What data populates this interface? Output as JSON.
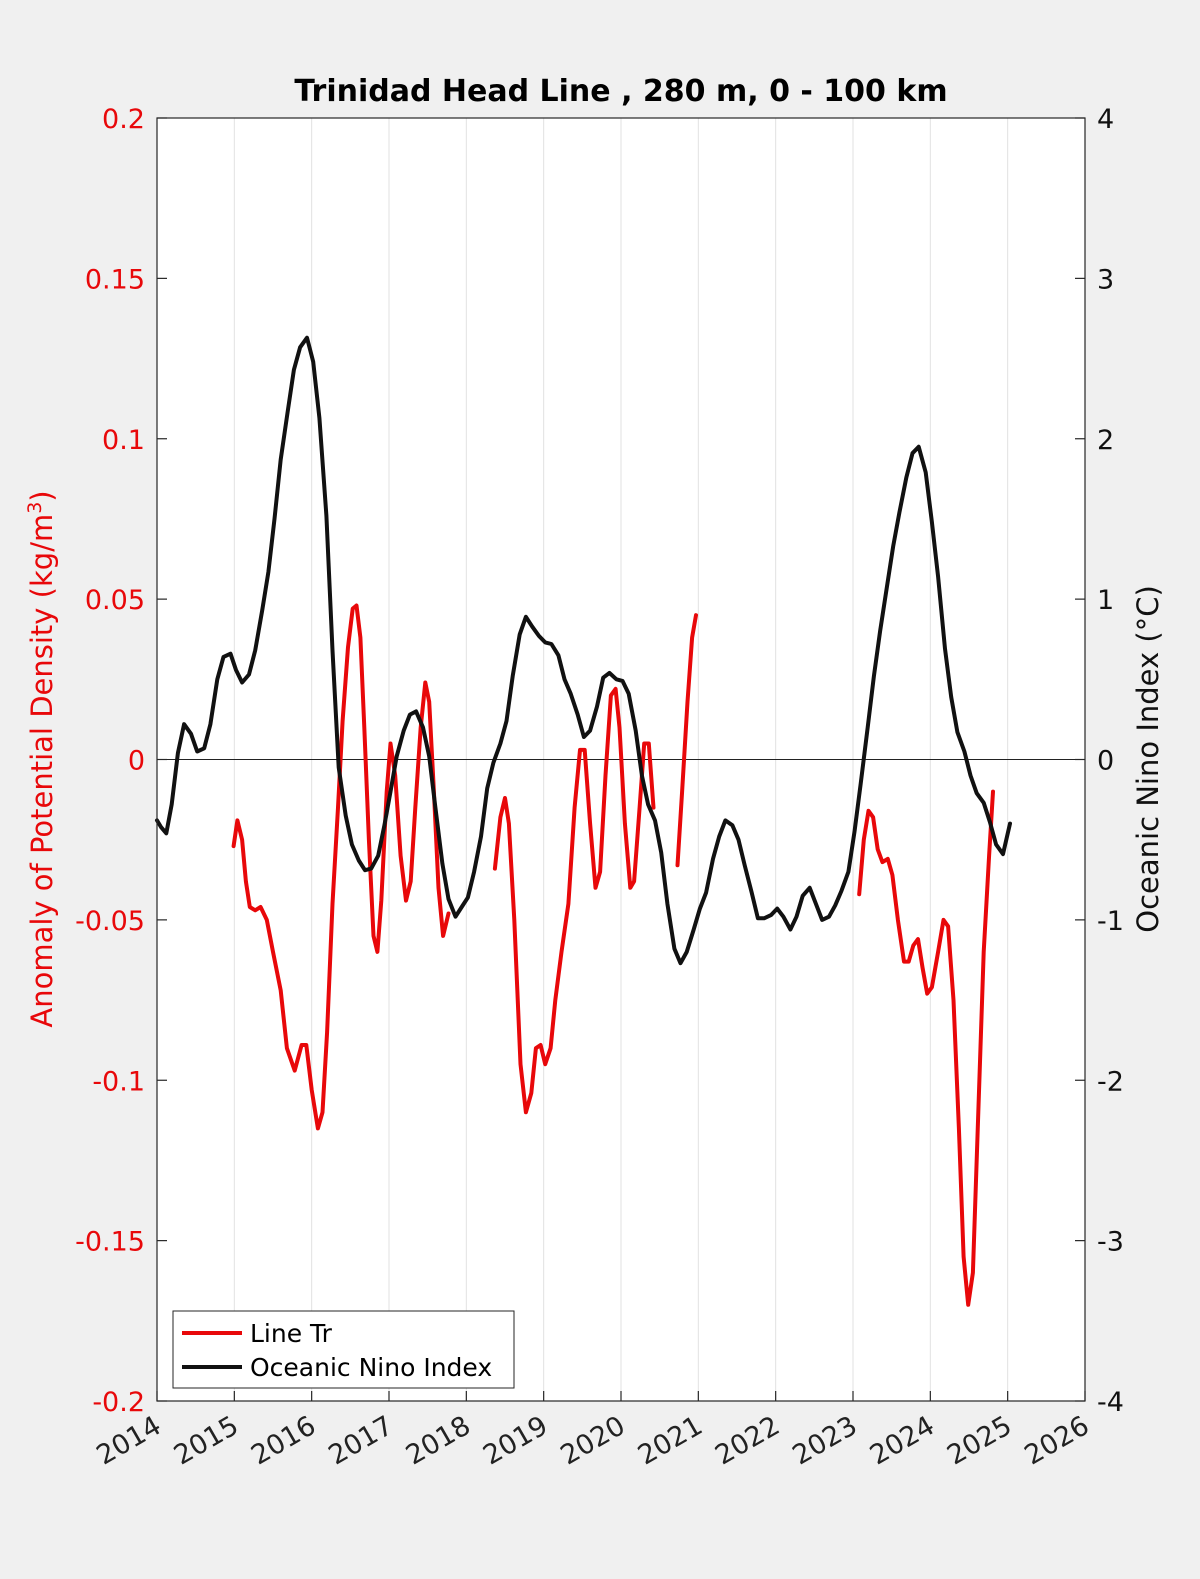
{
  "chart_data": {
    "type": "line",
    "title": "Trinidad Head Line , 280 m, 0 - 100 km",
    "xlabel": "",
    "xlim": [
      2014,
      2026
    ],
    "x_ticks": [
      "2014",
      "2015",
      "2016",
      "2017",
      "2018",
      "2019",
      "2020",
      "2021",
      "2022",
      "2023",
      "2024",
      "2025",
      "2026"
    ],
    "grid": "vertical",
    "legend_position": "bottom-left",
    "left_axis": {
      "label_main": "Anomaly of Potential Density (kg/m",
      "label_sup": "3",
      "label_end": ")",
      "ylim": [
        -0.2,
        0.2
      ],
      "ticks": [
        "0.2",
        "0.15",
        "0.1",
        "0.05",
        "0",
        "-0.05",
        "-0.1",
        "-0.15",
        "-0.2"
      ],
      "color": "#e8080a"
    },
    "right_axis": {
      "label": "Oceanic Nino Index (°C)",
      "ylim": [
        -4,
        4
      ],
      "ticks": [
        "4",
        "3",
        "2",
        "1",
        "0",
        "-1",
        "-2",
        "-3",
        "-4"
      ],
      "color": "#111111"
    },
    "series": [
      {
        "name": "Line Tr",
        "axis": "left",
        "color": "#e8080a",
        "segments": [
          [
            [
              2014.99,
              -0.027
            ],
            [
              2015.04,
              -0.019
            ],
            [
              2015.1,
              -0.025
            ],
            [
              2015.15,
              -0.038
            ],
            [
              2015.2,
              -0.046
            ],
            [
              2015.27,
              -0.047
            ],
            [
              2015.34,
              -0.046
            ],
            [
              2015.42,
              -0.05
            ],
            [
              2015.5,
              -0.06
            ],
            [
              2015.6,
              -0.072
            ],
            [
              2015.68,
              -0.09
            ],
            [
              2015.78,
              -0.097
            ],
            [
              2015.87,
              -0.089
            ],
            [
              2015.93,
              -0.089
            ],
            [
              2016.0,
              -0.103
            ],
            [
              2016.08,
              -0.115
            ],
            [
              2016.14,
              -0.11
            ],
            [
              2016.2,
              -0.085
            ],
            [
              2016.27,
              -0.045
            ],
            [
              2016.34,
              -0.015
            ],
            [
              2016.4,
              0.012
            ],
            [
              2016.47,
              0.035
            ],
            [
              2016.53,
              0.047
            ],
            [
              2016.58,
              0.048
            ],
            [
              2016.63,
              0.038
            ],
            [
              2016.68,
              0.01
            ],
            [
              2016.74,
              -0.025
            ],
            [
              2016.8,
              -0.055
            ],
            [
              2016.85,
              -0.06
            ],
            [
              2016.9,
              -0.044
            ],
            [
              2016.97,
              -0.01
            ],
            [
              2017.02,
              0.005
            ],
            [
              2017.08,
              -0.005
            ],
            [
              2017.15,
              -0.03
            ],
            [
              2017.22,
              -0.044
            ],
            [
              2017.28,
              -0.038
            ],
            [
              2017.34,
              -0.015
            ],
            [
              2017.41,
              0.01
            ],
            [
              2017.47,
              0.024
            ],
            [
              2017.52,
              0.018
            ],
            [
              2017.58,
              -0.01
            ],
            [
              2017.64,
              -0.04
            ],
            [
              2017.7,
              -0.055
            ],
            [
              2017.77,
              -0.048
            ]
          ],
          [
            [
              2018.37,
              -0.034
            ],
            [
              2018.44,
              -0.018
            ],
            [
              2018.5,
              -0.012
            ],
            [
              2018.55,
              -0.02
            ],
            [
              2018.62,
              -0.05
            ],
            [
              2018.7,
              -0.095
            ],
            [
              2018.77,
              -0.11
            ],
            [
              2018.84,
              -0.104
            ],
            [
              2018.9,
              -0.09
            ],
            [
              2018.96,
              -0.089
            ],
            [
              2019.02,
              -0.095
            ],
            [
              2019.09,
              -0.09
            ],
            [
              2019.15,
              -0.075
            ],
            [
              2019.23,
              -0.06
            ],
            [
              2019.32,
              -0.045
            ],
            [
              2019.4,
              -0.015
            ],
            [
              2019.47,
              0.003
            ],
            [
              2019.53,
              0.003
            ],
            [
              2019.6,
              -0.02
            ],
            [
              2019.67,
              -0.04
            ],
            [
              2019.73,
              -0.035
            ],
            [
              2019.8,
              -0.005
            ],
            [
              2019.87,
              0.02
            ],
            [
              2019.93,
              0.022
            ],
            [
              2019.98,
              0.01
            ],
            [
              2020.05,
              -0.02
            ],
            [
              2020.12,
              -0.04
            ],
            [
              2020.17,
              -0.038
            ],
            [
              2020.24,
              -0.015
            ],
            [
              2020.3,
              0.005
            ],
            [
              2020.36,
              0.005
            ],
            [
              2020.42,
              -0.015
            ]
          ],
          [
            [
              2020.73,
              -0.033
            ],
            [
              2020.79,
              -0.01
            ],
            [
              2020.86,
              0.018
            ],
            [
              2020.92,
              0.038
            ],
            [
              2020.97,
              0.045
            ]
          ],
          [
            [
              2023.08,
              -0.042
            ],
            [
              2023.14,
              -0.025
            ],
            [
              2023.2,
              -0.016
            ],
            [
              2023.26,
              -0.018
            ],
            [
              2023.32,
              -0.028
            ],
            [
              2023.38,
              -0.032
            ],
            [
              2023.45,
              -0.031
            ],
            [
              2023.51,
              -0.036
            ],
            [
              2023.58,
              -0.05
            ],
            [
              2023.66,
              -0.063
            ],
            [
              2023.72,
              -0.063
            ],
            [
              2023.78,
              -0.058
            ],
            [
              2023.84,
              -0.056
            ],
            [
              2023.9,
              -0.065
            ],
            [
              2023.96,
              -0.073
            ],
            [
              2024.02,
              -0.071
            ],
            [
              2024.1,
              -0.06
            ],
            [
              2024.17,
              -0.05
            ],
            [
              2024.23,
              -0.052
            ],
            [
              2024.3,
              -0.075
            ],
            [
              2024.37,
              -0.115
            ],
            [
              2024.43,
              -0.155
            ],
            [
              2024.49,
              -0.17
            ],
            [
              2024.55,
              -0.16
            ],
            [
              2024.62,
              -0.11
            ],
            [
              2024.69,
              -0.06
            ],
            [
              2024.76,
              -0.03
            ],
            [
              2024.81,
              -0.01
            ]
          ]
        ]
      },
      {
        "name": "Oceanic Nino Index",
        "axis": "right",
        "color": "#111111",
        "segments": [
          [
            [
              2014.0,
              -0.38
            ],
            [
              2014.05,
              -0.42
            ],
            [
              2014.12,
              -0.46
            ],
            [
              2014.19,
              -0.28
            ],
            [
              2014.27,
              0.04
            ],
            [
              2014.35,
              0.22
            ],
            [
              2014.44,
              0.16
            ],
            [
              2014.52,
              0.05
            ],
            [
              2014.61,
              0.07
            ],
            [
              2014.69,
              0.22
            ],
            [
              2014.78,
              0.5
            ],
            [
              2014.86,
              0.64
            ],
            [
              2014.95,
              0.66
            ],
            [
              2015.02,
              0.56
            ],
            [
              2015.1,
              0.48
            ],
            [
              2015.19,
              0.53
            ],
            [
              2015.27,
              0.68
            ],
            [
              2015.36,
              0.93
            ],
            [
              2015.44,
              1.17
            ],
            [
              2015.52,
              1.5
            ],
            [
              2015.6,
              1.87
            ],
            [
              2015.69,
              2.17
            ],
            [
              2015.77,
              2.43
            ],
            [
              2015.85,
              2.57
            ],
            [
              2015.94,
              2.63
            ],
            [
              2016.02,
              2.48
            ],
            [
              2016.1,
              2.13
            ],
            [
              2016.19,
              1.52
            ],
            [
              2016.27,
              0.68
            ],
            [
              2016.35,
              -0.05
            ],
            [
              2016.44,
              -0.35
            ],
            [
              2016.52,
              -0.53
            ],
            [
              2016.61,
              -0.63
            ],
            [
              2016.69,
              -0.69
            ],
            [
              2016.77,
              -0.68
            ],
            [
              2016.86,
              -0.6
            ],
            [
              2016.94,
              -0.41
            ],
            [
              2017.02,
              -0.2
            ],
            [
              2017.1,
              0.02
            ],
            [
              2017.19,
              0.18
            ],
            [
              2017.27,
              0.28
            ],
            [
              2017.35,
              0.3
            ],
            [
              2017.44,
              0.2
            ],
            [
              2017.52,
              0.02
            ],
            [
              2017.6,
              -0.3
            ],
            [
              2017.69,
              -0.65
            ],
            [
              2017.77,
              -0.87
            ],
            [
              2017.86,
              -0.98
            ],
            [
              2017.94,
              -0.92
            ],
            [
              2018.02,
              -0.86
            ],
            [
              2018.1,
              -0.7
            ],
            [
              2018.19,
              -0.48
            ],
            [
              2018.27,
              -0.18
            ],
            [
              2018.35,
              -0.02
            ],
            [
              2018.44,
              0.1
            ],
            [
              2018.52,
              0.24
            ],
            [
              2018.6,
              0.52
            ],
            [
              2018.69,
              0.78
            ],
            [
              2018.77,
              0.89
            ],
            [
              2018.85,
              0.83
            ],
            [
              2018.94,
              0.77
            ],
            [
              2019.02,
              0.73
            ],
            [
              2019.1,
              0.72
            ],
            [
              2019.19,
              0.65
            ],
            [
              2019.27,
              0.5
            ],
            [
              2019.35,
              0.41
            ],
            [
              2019.44,
              0.28
            ],
            [
              2019.52,
              0.14
            ],
            [
              2019.6,
              0.18
            ],
            [
              2019.69,
              0.33
            ],
            [
              2019.77,
              0.51
            ],
            [
              2019.85,
              0.54
            ],
            [
              2019.94,
              0.5
            ],
            [
              2020.02,
              0.49
            ],
            [
              2020.1,
              0.41
            ],
            [
              2020.19,
              0.18
            ],
            [
              2020.27,
              -0.1
            ],
            [
              2020.35,
              -0.28
            ],
            [
              2020.44,
              -0.38
            ],
            [
              2020.52,
              -0.58
            ],
            [
              2020.6,
              -0.9
            ],
            [
              2020.69,
              -1.18
            ],
            [
              2020.77,
              -1.27
            ],
            [
              2020.85,
              -1.2
            ],
            [
              2020.94,
              -1.06
            ],
            [
              2021.02,
              -0.93
            ],
            [
              2021.1,
              -0.83
            ],
            [
              2021.19,
              -0.62
            ],
            [
              2021.27,
              -0.48
            ],
            [
              2021.35,
              -0.38
            ],
            [
              2021.44,
              -0.41
            ],
            [
              2021.52,
              -0.5
            ],
            [
              2021.6,
              -0.66
            ],
            [
              2021.69,
              -0.83
            ],
            [
              2021.77,
              -0.99
            ],
            [
              2021.85,
              -0.99
            ],
            [
              2021.94,
              -0.97
            ],
            [
              2022.02,
              -0.93
            ],
            [
              2022.1,
              -0.98
            ],
            [
              2022.19,
              -1.06
            ],
            [
              2022.27,
              -0.98
            ],
            [
              2022.35,
              -0.85
            ],
            [
              2022.44,
              -0.8
            ],
            [
              2022.52,
              -0.9
            ],
            [
              2022.6,
              -1.0
            ],
            [
              2022.69,
              -0.98
            ],
            [
              2022.77,
              -0.91
            ],
            [
              2022.85,
              -0.82
            ],
            [
              2022.94,
              -0.7
            ],
            [
              2023.02,
              -0.45
            ],
            [
              2023.1,
              -0.15
            ],
            [
              2023.19,
              0.2
            ],
            [
              2023.27,
              0.52
            ],
            [
              2023.35,
              0.8
            ],
            [
              2023.44,
              1.08
            ],
            [
              2023.52,
              1.33
            ],
            [
              2023.6,
              1.54
            ],
            [
              2023.69,
              1.76
            ],
            [
              2023.77,
              1.91
            ],
            [
              2023.85,
              1.95
            ],
            [
              2023.94,
              1.79
            ],
            [
              2024.02,
              1.48
            ],
            [
              2024.1,
              1.14
            ],
            [
              2024.19,
              0.69
            ],
            [
              2024.27,
              0.39
            ],
            [
              2024.35,
              0.17
            ],
            [
              2024.44,
              0.05
            ],
            [
              2024.52,
              -0.1
            ],
            [
              2024.6,
              -0.21
            ],
            [
              2024.69,
              -0.27
            ],
            [
              2024.77,
              -0.39
            ],
            [
              2024.85,
              -0.53
            ],
            [
              2024.94,
              -0.59
            ],
            [
              2025.03,
              -0.4
            ]
          ]
        ]
      }
    ],
    "zero_line": 0
  }
}
